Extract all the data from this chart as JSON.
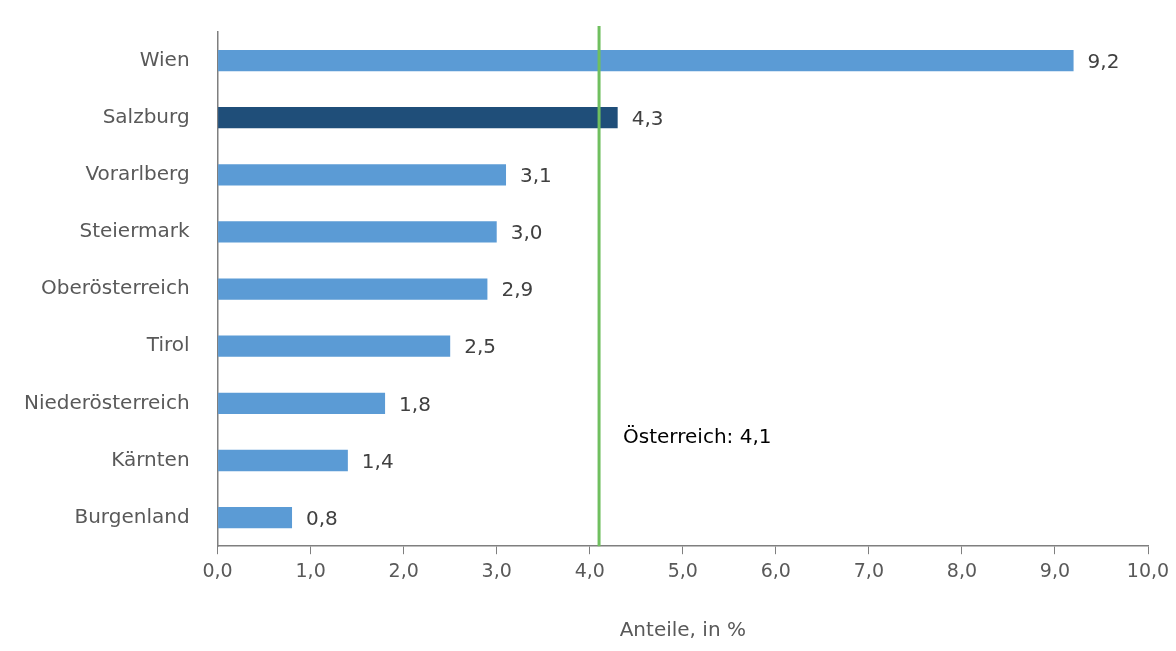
{
  "chart_data": {
    "type": "bar",
    "orientation": "horizontal",
    "xlabel": "Anteile, in %",
    "categories": [
      "Wien",
      "Salzburg",
      "Vorarlberg",
      "Steiermark",
      "Oberösterreich",
      "Tirol",
      "Niederösterreich",
      "Kärnten",
      "Burgenland"
    ],
    "values": [
      9.2,
      4.3,
      3.1,
      3.0,
      2.9,
      2.5,
      1.8,
      1.4,
      0.8
    ],
    "colors": [
      "#5b9bd5",
      "#1f4e79",
      "#5b9bd5",
      "#5b9bd5",
      "#5b9bd5",
      "#5b9bd5",
      "#5b9bd5",
      "#5b9bd5",
      "#5b9bd5"
    ],
    "value_labels": [
      "9,2",
      "4,3",
      "3,1",
      "3,0",
      "2,9",
      "2,5",
      "1,8",
      "1,4",
      "0,8"
    ],
    "xlim": [
      0,
      10
    ],
    "xticks": [
      {
        "value": 0,
        "label": "0,0"
      },
      {
        "value": 1,
        "label": "1,0"
      },
      {
        "value": 2,
        "label": "2,0"
      },
      {
        "value": 3,
        "label": "3,0"
      },
      {
        "value": 4,
        "label": "4,0"
      },
      {
        "value": 5,
        "label": "5,0"
      },
      {
        "value": 6,
        "label": "6,0"
      },
      {
        "value": 7,
        "label": "7,0"
      },
      {
        "value": 8,
        "label": "8,0"
      },
      {
        "value": 9,
        "label": "9,0"
      },
      {
        "value": 10,
        "label": "10,0"
      }
    ],
    "ref_lines": [
      {
        "axis": "x",
        "value": 4.1,
        "label": "Österreich: 4,1",
        "color": "#70bf5f"
      }
    ],
    "grid": false,
    "legend": false
  }
}
